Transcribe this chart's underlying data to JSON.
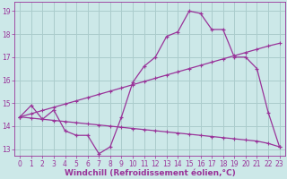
{
  "background_color": "#cce8e8",
  "grid_color": "#aacccc",
  "line_color": "#993399",
  "xlim_min": -0.5,
  "xlim_max": 23.5,
  "ylim_min": 12.7,
  "ylim_max": 19.4,
  "xlabel": "Windchill (Refroidissement éolien,°C)",
  "yticks": [
    13,
    14,
    15,
    16,
    17,
    18,
    19
  ],
  "xticks": [
    0,
    1,
    2,
    3,
    4,
    5,
    6,
    7,
    8,
    9,
    10,
    11,
    12,
    13,
    14,
    15,
    16,
    17,
    18,
    19,
    20,
    21,
    22,
    23
  ],
  "series1_x": [
    0,
    1,
    2,
    3,
    4,
    5,
    6,
    7,
    8,
    9,
    10,
    11,
    12,
    13,
    14,
    15,
    16,
    17,
    18,
    19,
    20,
    21,
    22,
    23
  ],
  "series1_y": [
    14.4,
    14.9,
    14.3,
    14.7,
    13.8,
    13.6,
    13.6,
    12.8,
    13.1,
    14.4,
    15.9,
    16.6,
    17.0,
    17.9,
    18.1,
    19.0,
    18.9,
    18.2,
    18.2,
    17.0,
    17.0,
    16.5,
    14.6,
    13.1
  ],
  "series2_x": [
    0,
    1,
    2,
    3,
    4,
    5,
    6,
    7,
    8,
    9,
    10,
    11,
    12,
    13,
    14,
    15,
    16,
    17,
    18,
    19,
    20,
    21,
    22,
    23
  ],
  "series2_y": [
    14.4,
    14.54,
    14.68,
    14.82,
    14.96,
    15.1,
    15.24,
    15.38,
    15.52,
    15.66,
    15.8,
    15.94,
    16.08,
    16.22,
    16.36,
    16.5,
    16.64,
    16.78,
    16.92,
    17.06,
    17.2,
    17.34,
    17.48,
    17.6
  ],
  "series3_x": [
    0,
    1,
    2,
    3,
    4,
    5,
    6,
    7,
    8,
    9,
    10,
    11,
    12,
    13,
    14,
    15,
    16,
    17,
    18,
    19,
    20,
    21,
    22,
    23
  ],
  "series3_y": [
    14.4,
    14.35,
    14.3,
    14.25,
    14.2,
    14.15,
    14.1,
    14.05,
    14.0,
    13.95,
    13.9,
    13.85,
    13.8,
    13.75,
    13.7,
    13.65,
    13.6,
    13.55,
    13.5,
    13.45,
    13.4,
    13.35,
    13.25,
    13.1
  ],
  "font_size_tick": 5.5,
  "font_size_label": 6.5
}
